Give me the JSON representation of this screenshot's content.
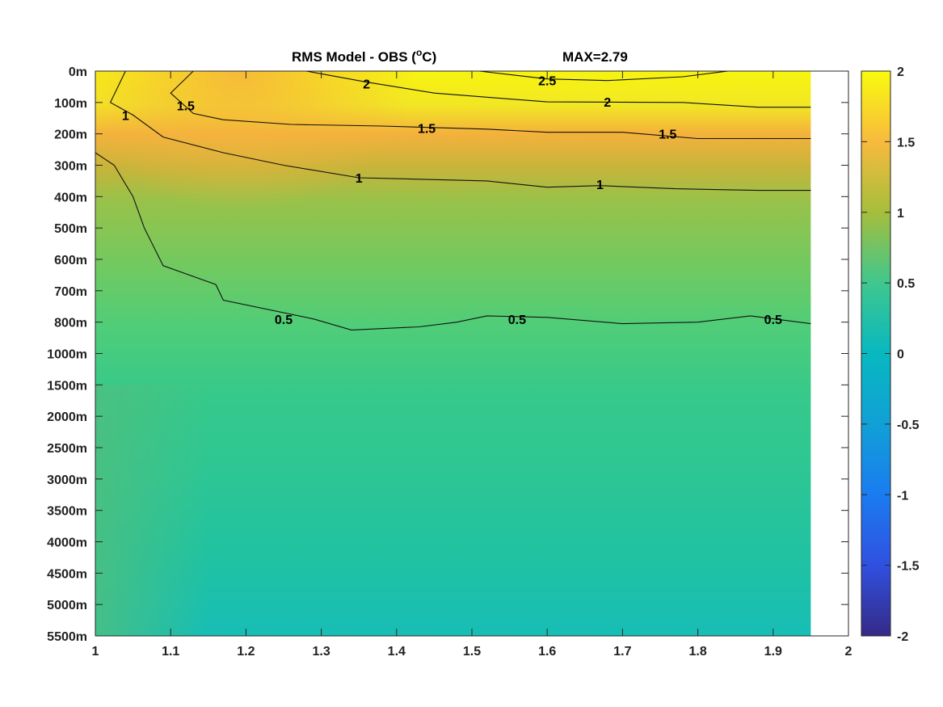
{
  "chart_data": {
    "type": "heatmap",
    "title": "RMS Model - OBS (oC)",
    "title_parts": {
      "prefix": "RMS Model - OBS (",
      "superscript": "o",
      "suffix": "C)"
    },
    "max_label": "MAX=2.79",
    "xlim": [
      1,
      2
    ],
    "x_ticks": [
      "1",
      "1.1",
      "1.2",
      "1.3",
      "1.4",
      "1.5",
      "1.6",
      "1.7",
      "1.8",
      "1.9",
      "2"
    ],
    "data_x_range": [
      1,
      1.95
    ],
    "y_ticks": [
      "0m",
      "100m",
      "200m",
      "300m",
      "400m",
      "500m",
      "600m",
      "700m",
      "800m",
      "1000m",
      "1500m",
      "2000m",
      "2500m",
      "3000m",
      "3500m",
      "4000m",
      "4500m",
      "5000m",
      "5500m"
    ],
    "colorbar": {
      "limits": [
        -2,
        2
      ],
      "ticks": [
        "2",
        "1.5",
        "1",
        "0.5",
        "0",
        "-0.5",
        "-1",
        "-1.5",
        "-2"
      ],
      "colormap": "parula"
    },
    "contours": [
      {
        "level": 2.5,
        "labels": [
          {
            "text": "2.5",
            "x": 1.6,
            "y": 0.3
          }
        ],
        "points": [
          [
            1.51,
            0
          ],
          [
            1.6,
            0.25
          ],
          [
            1.68,
            0.3
          ],
          [
            1.78,
            0.18
          ],
          [
            1.84,
            0
          ]
        ]
      },
      {
        "level": 2.0,
        "labels": [
          {
            "text": "2",
            "x": 1.36,
            "y": 0.4
          },
          {
            "text": "2",
            "x": 1.68,
            "y": 0.98
          }
        ],
        "points": [
          [
            1.28,
            0
          ],
          [
            1.36,
            0.35
          ],
          [
            1.45,
            0.7
          ],
          [
            1.6,
            0.98
          ],
          [
            1.78,
            1.0
          ],
          [
            1.88,
            1.15
          ],
          [
            1.95,
            1.15
          ]
        ]
      },
      {
        "level": 1.5,
        "labels": [
          {
            "text": "1.5",
            "x": 1.12,
            "y": 1.1
          },
          {
            "text": "1.5",
            "x": 1.44,
            "y": 1.82
          },
          {
            "text": "1.5",
            "x": 1.76,
            "y": 2.0
          }
        ],
        "points": [
          [
            1.13,
            0
          ],
          [
            1.1,
            0.7
          ],
          [
            1.13,
            1.35
          ],
          [
            1.17,
            1.55
          ],
          [
            1.26,
            1.7
          ],
          [
            1.38,
            1.75
          ],
          [
            1.52,
            1.85
          ],
          [
            1.6,
            1.95
          ],
          [
            1.7,
            1.95
          ],
          [
            1.8,
            2.15
          ],
          [
            1.95,
            2.15
          ]
        ]
      },
      {
        "level": 1.0,
        "labels": [
          {
            "text": "1",
            "x": 1.04,
            "y": 1.4
          },
          {
            "text": "1",
            "x": 1.35,
            "y": 3.4
          },
          {
            "text": "1",
            "x": 1.67,
            "y": 3.6
          }
        ],
        "points": [
          [
            1.04,
            0
          ],
          [
            1.02,
            1.0
          ],
          [
            1.05,
            1.4
          ],
          [
            1.09,
            2.1
          ],
          [
            1.17,
            2.6
          ],
          [
            1.25,
            3.0
          ],
          [
            1.35,
            3.4
          ],
          [
            1.52,
            3.5
          ],
          [
            1.6,
            3.7
          ],
          [
            1.67,
            3.65
          ],
          [
            1.77,
            3.75
          ],
          [
            1.88,
            3.8
          ],
          [
            1.95,
            3.8
          ]
        ]
      },
      {
        "level": 0.5,
        "labels": [
          {
            "text": "0.5",
            "x": 1.25,
            "y": 7.9
          },
          {
            "text": "0.5",
            "x": 1.56,
            "y": 7.9
          },
          {
            "text": "0.5",
            "x": 1.9,
            "y": 7.9
          }
        ],
        "points": [
          [
            1.0,
            2.6
          ],
          [
            1.025,
            3.0
          ],
          [
            1.05,
            4.0
          ],
          [
            1.065,
            5.0
          ],
          [
            1.09,
            6.2
          ],
          [
            1.16,
            6.8
          ],
          [
            1.17,
            7.3
          ],
          [
            1.29,
            7.9
          ],
          [
            1.34,
            8.25
          ],
          [
            1.43,
            8.15
          ],
          [
            1.48,
            8.0
          ],
          [
            1.52,
            7.8
          ],
          [
            1.6,
            7.85
          ],
          [
            1.7,
            8.05
          ],
          [
            1.8,
            8.0
          ],
          [
            1.87,
            7.8
          ],
          [
            1.95,
            8.05
          ]
        ]
      }
    ]
  }
}
